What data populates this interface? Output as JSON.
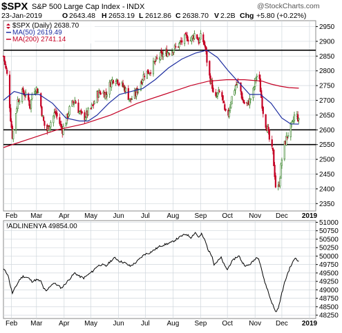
{
  "header": {
    "symbol": "$SPX",
    "name": "S&P 500 Large Cap Index",
    "exchange": "INDX",
    "date": "23-Jan-2019",
    "open_label": "O",
    "open": "2643.48",
    "high_label": "H",
    "high": "2653.19",
    "low_label": "L",
    "low": "2612.86",
    "close_label": "C",
    "close": "2638.70",
    "volume_label": "V",
    "volume": "2.2B",
    "change_label": "Chg",
    "change": "+5.80 (+0.22%)",
    "watermark": "@StockCharts.com"
  },
  "colors": {
    "up_candle": "#2e7d1e",
    "down_candle": "#c40024",
    "ma50": "#1d2da0",
    "ma200": "#c40024",
    "indicator_line": "#000000",
    "grid": "#cfd6dc",
    "hline": "#000000"
  },
  "chart_data": [
    {
      "type": "candlestick",
      "title": "$SPX (Daily) 2638.70",
      "legend": [
        {
          "name": "$SPX (Daily)",
          "value": "2638.70",
          "color": "#000000"
        },
        {
          "name": "MA(50)",
          "value": "2619.49",
          "color": "#1d2da0"
        },
        {
          "name": "MA(200)",
          "value": "2741.14",
          "color": "#c40024"
        }
      ],
      "y_ticks": [
        2350,
        2400,
        2450,
        2500,
        2550,
        2600,
        2650,
        2700,
        2750,
        2800,
        2850,
        2900,
        2950
      ],
      "ylim": [
        2325,
        2970
      ],
      "x_range_days": [
        0,
        331
      ],
      "x_ticks": [
        {
          "label": "Feb",
          "day": 9
        },
        {
          "label": "Mar",
          "day": 37
        },
        {
          "label": "Apr",
          "day": 68
        },
        {
          "label": "May",
          "day": 98
        },
        {
          "label": "Jun",
          "day": 129
        },
        {
          "label": "Jul",
          "day": 159
        },
        {
          "label": "Aug",
          "day": 190
        },
        {
          "label": "Sep",
          "day": 221
        },
        {
          "label": "Oct",
          "day": 251
        },
        {
          "label": "Nov",
          "day": 282
        },
        {
          "label": "Dec",
          "day": 312
        },
        {
          "label": "2019",
          "day": 343,
          "bold": true
        }
      ],
      "horizontal_lines": [
        2870,
        2600,
        2550
      ],
      "price_path": [
        [
          0,
          2850
        ],
        [
          5,
          2770
        ],
        [
          8,
          2640
        ],
        [
          10,
          2580
        ],
        [
          12,
          2620
        ],
        [
          16,
          2700
        ],
        [
          22,
          2730
        ],
        [
          28,
          2700
        ],
        [
          30,
          2680
        ],
        [
          33,
          2740
        ],
        [
          37,
          2740
        ],
        [
          40,
          2720
        ],
        [
          44,
          2640
        ],
        [
          48,
          2590
        ],
        [
          52,
          2620
        ],
        [
          55,
          2640
        ],
        [
          58,
          2660
        ],
        [
          62,
          2630
        ],
        [
          66,
          2600
        ],
        [
          70,
          2630
        ],
        [
          75,
          2680
        ],
        [
          80,
          2700
        ],
        [
          85,
          2660
        ],
        [
          90,
          2640
        ],
        [
          95,
          2660
        ],
        [
          100,
          2680
        ],
        [
          105,
          2720
        ],
        [
          110,
          2730
        ],
        [
          115,
          2720
        ],
        [
          120,
          2760
        ],
        [
          125,
          2780
        ],
        [
          130,
          2760
        ],
        [
          136,
          2740
        ],
        [
          142,
          2700
        ],
        [
          148,
          2720
        ],
        [
          152,
          2750
        ],
        [
          158,
          2790
        ],
        [
          164,
          2800
        ],
        [
          170,
          2830
        ],
        [
          176,
          2850
        ],
        [
          182,
          2860
        ],
        [
          188,
          2870
        ],
        [
          194,
          2880
        ],
        [
          200,
          2900
        ],
        [
          205,
          2915
        ],
        [
          210,
          2905
        ],
        [
          215,
          2930
        ],
        [
          219,
          2900
        ],
        [
          222,
          2920
        ],
        [
          226,
          2880
        ],
        [
          230,
          2790
        ],
        [
          234,
          2750
        ],
        [
          236,
          2690
        ],
        [
          240,
          2720
        ],
        [
          244,
          2730
        ],
        [
          248,
          2660
        ],
        [
          251,
          2640
        ],
        [
          255,
          2700
        ],
        [
          260,
          2750
        ],
        [
          264,
          2760
        ],
        [
          268,
          2700
        ],
        [
          272,
          2680
        ],
        [
          276,
          2700
        ],
        [
          280,
          2730
        ],
        [
          283,
          2780
        ],
        [
          286,
          2790
        ],
        [
          289,
          2710
        ],
        [
          292,
          2640
        ],
        [
          296,
          2600
        ],
        [
          299,
          2550
        ],
        [
          302,
          2520
        ],
        [
          304,
          2450
        ],
        [
          306,
          2370
        ],
        [
          309,
          2420
        ],
        [
          312,
          2500
        ],
        [
          315,
          2550
        ],
        [
          318,
          2580
        ],
        [
          321,
          2600
        ],
        [
          324,
          2620
        ],
        [
          327,
          2660
        ],
        [
          330,
          2640
        ],
        [
          331,
          2638.7
        ]
      ],
      "ma50_path": [
        [
          0,
          2700
        ],
        [
          12,
          2730
        ],
        [
          24,
          2720
        ],
        [
          40,
          2720
        ],
        [
          55,
          2690
        ],
        [
          70,
          2640
        ],
        [
          85,
          2630
        ],
        [
          95,
          2630
        ],
        [
          105,
          2650
        ],
        [
          118,
          2690
        ],
        [
          130,
          2720
        ],
        [
          143,
          2730
        ],
        [
          156,
          2740
        ],
        [
          170,
          2770
        ],
        [
          185,
          2810
        ],
        [
          200,
          2840
        ],
        [
          215,
          2860
        ],
        [
          228,
          2870
        ],
        [
          240,
          2845
        ],
        [
          252,
          2800
        ],
        [
          264,
          2760
        ],
        [
          276,
          2720
        ],
        [
          288,
          2720
        ],
        [
          300,
          2690
        ],
        [
          312,
          2640
        ],
        [
          322,
          2620
        ],
        [
          331,
          2619.49
        ]
      ],
      "ma200_path": [
        [
          0,
          2540
        ],
        [
          30,
          2570
        ],
        [
          60,
          2600
        ],
        [
          90,
          2620
        ],
        [
          120,
          2650
        ],
        [
          150,
          2690
        ],
        [
          180,
          2720
        ],
        [
          210,
          2750
        ],
        [
          230,
          2765
        ],
        [
          250,
          2770
        ],
        [
          270,
          2770
        ],
        [
          290,
          2765
        ],
        [
          300,
          2755
        ],
        [
          310,
          2748
        ],
        [
          320,
          2743
        ],
        [
          331,
          2741.14
        ]
      ]
    },
    {
      "type": "line",
      "title": "!ADLINENYA 49854.00",
      "legend": [
        {
          "name": "!ADLINENYA",
          "value": "49854.00",
          "color": "#000000"
        }
      ],
      "y_ticks": [
        48250,
        48500,
        48750,
        49000,
        49250,
        49500,
        49750,
        50000,
        50250,
        50500,
        50750,
        51000
      ],
      "ylim": [
        48150,
        51050
      ],
      "x_range_days": [
        0,
        331
      ],
      "series": [
        {
          "values": [
            [
              0,
              49620
            ],
            [
              5,
              49450
            ],
            [
              8,
              49100
            ],
            [
              10,
              48900
            ],
            [
              13,
              49050
            ],
            [
              18,
              49300
            ],
            [
              22,
              49400
            ],
            [
              28,
              49350
            ],
            [
              32,
              49250
            ],
            [
              37,
              49300
            ],
            [
              42,
              49250
            ],
            [
              45,
              49050
            ],
            [
              48,
              48950
            ],
            [
              52,
              49100
            ],
            [
              56,
              49200
            ],
            [
              60,
              49150
            ],
            [
              65,
              49050
            ],
            [
              70,
              49200
            ],
            [
              75,
              49350
            ],
            [
              80,
              49500
            ],
            [
              85,
              49400
            ],
            [
              90,
              49350
            ],
            [
              95,
              49450
            ],
            [
              100,
              49550
            ],
            [
              105,
              49700
            ],
            [
              110,
              49750
            ],
            [
              115,
              49700
            ],
            [
              120,
              49850
            ],
            [
              125,
              49950
            ],
            [
              130,
              49850
            ],
            [
              136,
              49800
            ],
            [
              142,
              49700
            ],
            [
              148,
              49800
            ],
            [
              152,
              49900
            ],
            [
              158,
              50050
            ],
            [
              164,
              50100
            ],
            [
              170,
              50200
            ],
            [
              176,
              50300
            ],
            [
              182,
              50350
            ],
            [
              188,
              50400
            ],
            [
              194,
              50500
            ],
            [
              200,
              50600
            ],
            [
              205,
              50650
            ],
            [
              210,
              50550
            ],
            [
              215,
              50700
            ],
            [
              219,
              50550
            ],
            [
              222,
              50650
            ],
            [
              226,
              50450
            ],
            [
              230,
              50150
            ],
            [
              234,
              50000
            ],
            [
              236,
              49750
            ],
            [
              240,
              49850
            ],
            [
              244,
              49950
            ],
            [
              248,
              49700
            ],
            [
              251,
              49600
            ],
            [
              255,
              49800
            ],
            [
              260,
              49950
            ],
            [
              264,
              50000
            ],
            [
              268,
              49800
            ],
            [
              272,
              49700
            ],
            [
              276,
              49750
            ],
            [
              280,
              49850
            ],
            [
              283,
              49950
            ],
            [
              286,
              49950
            ],
            [
              289,
              49650
            ],
            [
              292,
              49300
            ],
            [
              296,
              49000
            ],
            [
              299,
              48750
            ],
            [
              302,
              48550
            ],
            [
              304,
              48400
            ],
            [
              306,
              48350
            ],
            [
              309,
              48550
            ],
            [
              312,
              48900
            ],
            [
              315,
              49200
            ],
            [
              318,
              49450
            ],
            [
              321,
              49650
            ],
            [
              324,
              49800
            ],
            [
              327,
              49950
            ],
            [
              329,
              49900
            ],
            [
              331,
              49854
            ]
          ]
        }
      ]
    }
  ]
}
